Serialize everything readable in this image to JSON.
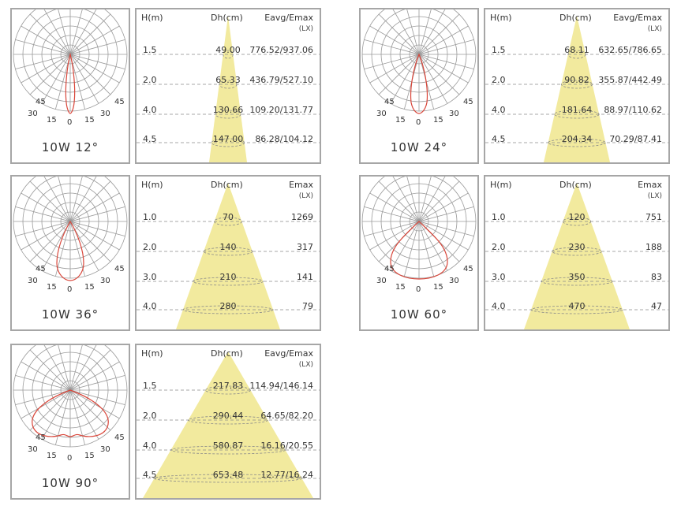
{
  "headers": {
    "h": "H(m)",
    "dh": "Dh(cm)",
    "unit": "(LX)"
  },
  "panels": [
    {
      "id": "12",
      "caption": "10W 12°",
      "metric_label": "Eavg/Emax",
      "beam_angle_deg": 12,
      "rows": [
        {
          "h": "1.5",
          "dh": "49.00",
          "e": "776.52/937.06"
        },
        {
          "h": "2.0",
          "dh": "65.33",
          "e": "436.79/527.10"
        },
        {
          "h": "4.0",
          "dh": "130.66",
          "e": "109.20/131.77"
        },
        {
          "h": "4.5",
          "dh": "147.00",
          "e": "86.28/104.12"
        }
      ]
    },
    {
      "id": "24",
      "caption": "10W 24°",
      "metric_label": "Eavg/Emax",
      "beam_angle_deg": 24,
      "rows": [
        {
          "h": "1.5",
          "dh": "68.11",
          "e": "632.65/786.65"
        },
        {
          "h": "2.0",
          "dh": "90.82",
          "e": "355.87/442.49"
        },
        {
          "h": "4.0",
          "dh": "181.64",
          "e": "88.97/110.62"
        },
        {
          "h": "4.5",
          "dh": "204.34",
          "e": "70.29/87.41"
        }
      ]
    },
    {
      "id": "36",
      "caption": "10W 36°",
      "metric_label": "Emax",
      "beam_angle_deg": 36,
      "rows": [
        {
          "h": "1.0",
          "dh": "70",
          "e": "1269"
        },
        {
          "h": "2.0",
          "dh": "140",
          "e": "317"
        },
        {
          "h": "3.0",
          "dh": "210",
          "e": "141"
        },
        {
          "h": "4.0",
          "dh": "280",
          "e": "79"
        }
      ]
    },
    {
      "id": "60",
      "caption": "10W 60°",
      "metric_label": "Emax",
      "beam_angle_deg": 60,
      "rows": [
        {
          "h": "1.0",
          "dh": "120",
          "e": "751"
        },
        {
          "h": "2.0",
          "dh": "230",
          "e": "188"
        },
        {
          "h": "3.0",
          "dh": "350",
          "e": "83"
        },
        {
          "h": "4.0",
          "dh": "470",
          "e": "47"
        }
      ]
    },
    {
      "id": "90",
      "caption": "10W 90°",
      "metric_label": "Eavg/Emax",
      "beam_angle_deg": 90,
      "rows": [
        {
          "h": "1.5",
          "dh": "217.83",
          "e": "114.94/146.14"
        },
        {
          "h": "2.0",
          "dh": "290.44",
          "e": "64.65/82.20"
        },
        {
          "h": "4.0",
          "dh": "580.87",
          "e": "16.16/20.55"
        },
        {
          "h": "4.5",
          "dh": "653.48",
          "e": "12.77/16.24"
        }
      ]
    }
  ],
  "polar_angle_labels": [
    "45",
    "30",
    "15",
    "0",
    "15",
    "30",
    "45"
  ],
  "colors": {
    "beam": "#f2ea9e",
    "curve": "#d9463a",
    "grid": "#9a9a9a",
    "border": "#a6a6a6",
    "dash": "#8a8a8a"
  }
}
